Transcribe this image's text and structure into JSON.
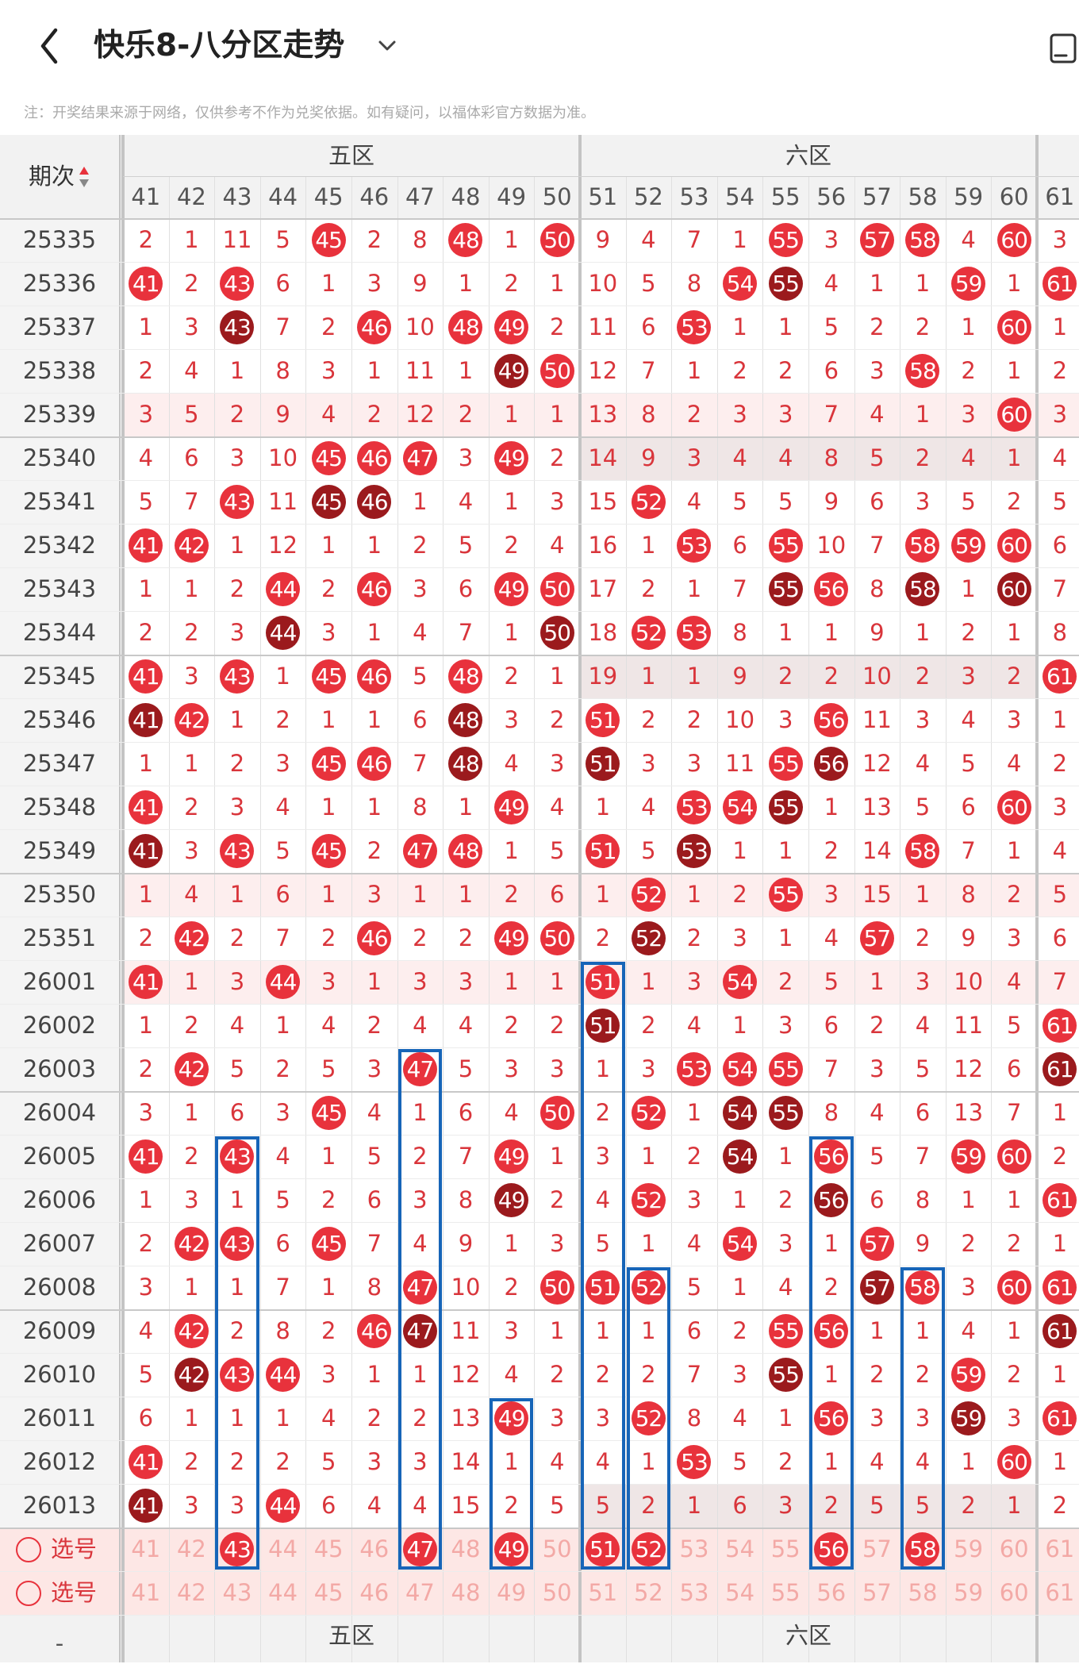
{
  "header": {
    "title": "快乐8-八分区走势",
    "back_icon": "chevron-left-icon",
    "dropdown_icon": "chevron-down-icon",
    "screen_icon": "mini-window-icon"
  },
  "note": "注：开奖结果来源于网络，仅供参考不作为兑奖依据。如有疑问，以福体彩官方数据为准。",
  "colors": {
    "hit": "#e8323c",
    "repeat": "#9b1a1d",
    "highlight_blue": "#1765b8",
    "text_red": "#d9353b"
  },
  "table": {
    "zone_headers": [
      {
        "label": "五区"
      },
      {
        "label": "六区"
      }
    ],
    "period_header": "期次",
    "sort_icon": "sort-arrows-icon",
    "columns": [
      "41",
      "42",
      "43",
      "44",
      "45",
      "46",
      "47",
      "48",
      "49",
      "50",
      "51",
      "52",
      "53",
      "54",
      "55",
      "56",
      "57",
      "58",
      "59",
      "60",
      "61"
    ],
    "rows": [
      {
        "period": "25335",
        "cells": [
          "2",
          "1",
          "11",
          "5",
          "45",
          "2",
          "8",
          "48",
          "1",
          "50",
          "9",
          "4",
          "7",
          "1",
          "55",
          "3",
          "57",
          "58",
          "4",
          "60",
          "3"
        ]
      },
      {
        "period": "25336",
        "cells": [
          "41",
          "2",
          "43",
          "6",
          "1",
          "3",
          "9",
          "1",
          "2",
          "1",
          "10",
          "5",
          "8",
          "54",
          "55",
          "4",
          "1",
          "1",
          "59",
          "1",
          "61"
        ]
      },
      {
        "period": "25337",
        "cells": [
          "1",
          "3",
          "43",
          "7",
          "2",
          "46",
          "10",
          "48",
          "49",
          "2",
          "11",
          "6",
          "53",
          "1",
          "1",
          "5",
          "2",
          "2",
          "1",
          "60",
          "1"
        ]
      },
      {
        "period": "25338",
        "cells": [
          "2",
          "4",
          "1",
          "8",
          "3",
          "1",
          "11",
          "1",
          "49",
          "50",
          "12",
          "7",
          "1",
          "2",
          "2",
          "6",
          "3",
          "58",
          "2",
          "1",
          "2"
        ]
      },
      {
        "period": "25339",
        "cells": [
          "3",
          "5",
          "2",
          "9",
          "4",
          "2",
          "12",
          "2",
          "1",
          "1",
          "13",
          "8",
          "2",
          "3",
          "3",
          "7",
          "4",
          "1",
          "3",
          "60",
          "3"
        ]
      },
      {
        "period": "25340",
        "cells": [
          "4",
          "6",
          "3",
          "10",
          "45",
          "46",
          "47",
          "3",
          "49",
          "2",
          "14",
          "9",
          "3",
          "4",
          "4",
          "8",
          "5",
          "2",
          "4",
          "1",
          "4"
        ]
      },
      {
        "period": "25341",
        "cells": [
          "5",
          "7",
          "43",
          "11",
          "45",
          "46",
          "1",
          "4",
          "1",
          "3",
          "15",
          "52",
          "4",
          "5",
          "5",
          "9",
          "6",
          "3",
          "5",
          "2",
          "5"
        ]
      },
      {
        "period": "25342",
        "cells": [
          "41",
          "42",
          "1",
          "12",
          "1",
          "1",
          "2",
          "5",
          "2",
          "4",
          "16",
          "1",
          "53",
          "6",
          "55",
          "10",
          "7",
          "58",
          "59",
          "60",
          "6"
        ]
      },
      {
        "period": "25343",
        "cells": [
          "1",
          "1",
          "2",
          "44",
          "2",
          "46",
          "3",
          "6",
          "49",
          "50",
          "17",
          "2",
          "1",
          "7",
          "55",
          "56",
          "8",
          "58",
          "1",
          "60",
          "7"
        ]
      },
      {
        "period": "25344",
        "cells": [
          "2",
          "2",
          "3",
          "44",
          "3",
          "1",
          "4",
          "7",
          "1",
          "50",
          "18",
          "52",
          "53",
          "8",
          "1",
          "1",
          "9",
          "1",
          "2",
          "1",
          "8"
        ]
      },
      {
        "period": "25345",
        "cells": [
          "41",
          "3",
          "43",
          "1",
          "45",
          "46",
          "5",
          "48",
          "2",
          "1",
          "19",
          "1",
          "1",
          "9",
          "2",
          "2",
          "10",
          "2",
          "3",
          "2",
          "61"
        ]
      },
      {
        "period": "25346",
        "cells": [
          "41",
          "42",
          "1",
          "2",
          "1",
          "1",
          "6",
          "48",
          "3",
          "2",
          "51",
          "2",
          "2",
          "10",
          "3",
          "56",
          "11",
          "3",
          "4",
          "3",
          "1"
        ]
      },
      {
        "period": "25347",
        "cells": [
          "1",
          "1",
          "2",
          "3",
          "45",
          "46",
          "7",
          "48",
          "4",
          "3",
          "51",
          "3",
          "3",
          "11",
          "55",
          "56",
          "12",
          "4",
          "5",
          "4",
          "2"
        ]
      },
      {
        "period": "25348",
        "cells": [
          "41",
          "2",
          "3",
          "4",
          "1",
          "1",
          "8",
          "1",
          "49",
          "4",
          "1",
          "4",
          "53",
          "54",
          "55",
          "1",
          "13",
          "5",
          "6",
          "60",
          "3"
        ]
      },
      {
        "period": "25349",
        "cells": [
          "41",
          "3",
          "43",
          "5",
          "45",
          "2",
          "47",
          "48",
          "1",
          "5",
          "51",
          "5",
          "53",
          "1",
          "1",
          "2",
          "14",
          "58",
          "7",
          "1",
          "4"
        ]
      },
      {
        "period": "25350",
        "cells": [
          "1",
          "4",
          "1",
          "6",
          "1",
          "3",
          "1",
          "1",
          "2",
          "6",
          "1",
          "52",
          "1",
          "2",
          "55",
          "3",
          "15",
          "1",
          "8",
          "2",
          "5"
        ]
      },
      {
        "period": "25351",
        "cells": [
          "2",
          "42",
          "2",
          "7",
          "2",
          "46",
          "2",
          "2",
          "49",
          "50",
          "2",
          "52",
          "2",
          "3",
          "1",
          "4",
          "57",
          "2",
          "9",
          "3",
          "6"
        ]
      },
      {
        "period": "26001",
        "cells": [
          "41",
          "1",
          "3",
          "44",
          "3",
          "1",
          "3",
          "3",
          "1",
          "1",
          "51",
          "1",
          "3",
          "54",
          "2",
          "5",
          "1",
          "3",
          "10",
          "4",
          "7"
        ]
      },
      {
        "period": "26002",
        "cells": [
          "1",
          "2",
          "4",
          "1",
          "4",
          "2",
          "4",
          "4",
          "2",
          "2",
          "51",
          "2",
          "4",
          "1",
          "3",
          "6",
          "2",
          "4",
          "11",
          "5",
          "61"
        ]
      },
      {
        "period": "26003",
        "cells": [
          "2",
          "42",
          "5",
          "2",
          "5",
          "3",
          "47",
          "5",
          "3",
          "3",
          "1",
          "3",
          "53",
          "54",
          "55",
          "7",
          "3",
          "5",
          "12",
          "6",
          "61"
        ]
      },
      {
        "period": "26004",
        "cells": [
          "3",
          "1",
          "6",
          "3",
          "45",
          "4",
          "1",
          "6",
          "4",
          "50",
          "2",
          "52",
          "1",
          "54",
          "55",
          "8",
          "4",
          "6",
          "13",
          "7",
          "1"
        ]
      },
      {
        "period": "26005",
        "cells": [
          "41",
          "2",
          "43",
          "4",
          "1",
          "5",
          "2",
          "7",
          "49",
          "1",
          "3",
          "1",
          "2",
          "54",
          "1",
          "56",
          "5",
          "7",
          "59",
          "60",
          "2"
        ]
      },
      {
        "period": "26006",
        "cells": [
          "1",
          "3",
          "1",
          "5",
          "2",
          "6",
          "3",
          "8",
          "49",
          "2",
          "4",
          "52",
          "3",
          "1",
          "2",
          "56",
          "6",
          "8",
          "1",
          "1",
          "61"
        ]
      },
      {
        "period": "26007",
        "cells": [
          "2",
          "42",
          "43",
          "6",
          "45",
          "7",
          "4",
          "9",
          "1",
          "3",
          "5",
          "1",
          "4",
          "54",
          "3",
          "1",
          "57",
          "9",
          "2",
          "2",
          "1"
        ]
      },
      {
        "period": "26008",
        "cells": [
          "3",
          "1",
          "1",
          "7",
          "1",
          "8",
          "47",
          "10",
          "2",
          "50",
          "51",
          "52",
          "5",
          "1",
          "4",
          "2",
          "57",
          "58",
          "3",
          "60",
          "61"
        ]
      },
      {
        "period": "26009",
        "cells": [
          "4",
          "42",
          "2",
          "8",
          "2",
          "46",
          "47",
          "11",
          "3",
          "1",
          "1",
          "1",
          "6",
          "2",
          "55",
          "56",
          "1",
          "1",
          "4",
          "1",
          "61"
        ]
      },
      {
        "period": "26010",
        "cells": [
          "5",
          "42",
          "43",
          "44",
          "3",
          "1",
          "1",
          "12",
          "4",
          "2",
          "2",
          "2",
          "7",
          "3",
          "55",
          "1",
          "2",
          "2",
          "59",
          "2",
          "1"
        ]
      },
      {
        "period": "26011",
        "cells": [
          "6",
          "1",
          "1",
          "1",
          "4",
          "2",
          "2",
          "13",
          "49",
          "3",
          "3",
          "52",
          "8",
          "4",
          "1",
          "56",
          "3",
          "3",
          "59",
          "3",
          "61"
        ]
      },
      {
        "period": "26012",
        "cells": [
          "41",
          "2",
          "2",
          "2",
          "5",
          "3",
          "3",
          "14",
          "1",
          "4",
          "4",
          "1",
          "53",
          "5",
          "2",
          "1",
          "4",
          "4",
          "1",
          "60",
          "1"
        ]
      },
      {
        "period": "26013",
        "cells": [
          "41",
          "3",
          "3",
          "44",
          "6",
          "4",
          "4",
          "15",
          "2",
          "5",
          "5",
          "2",
          "1",
          "6",
          "3",
          "2",
          "5",
          "5",
          "2",
          "1",
          "2"
        ]
      }
    ],
    "select_rows": [
      {
        "label": "选号",
        "cells": [
          "41",
          "42",
          "43",
          "44",
          "45",
          "46",
          "47",
          "48",
          "49",
          "50",
          "51",
          "52",
          "53",
          "54",
          "55",
          "56",
          "57",
          "58",
          "59",
          "60",
          "61"
        ]
      },
      {
        "label": "选号",
        "cells": [
          "41",
          "42",
          "43",
          "44",
          "45",
          "46",
          "47",
          "48",
          "49",
          "50",
          "51",
          "52",
          "53",
          "54",
          "55",
          "56",
          "57",
          "58",
          "59",
          "60",
          "61"
        ]
      }
    ],
    "footer_zones": [
      {
        "label": "五区"
      },
      {
        "label": "六区"
      }
    ],
    "footer_period": "-"
  }
}
